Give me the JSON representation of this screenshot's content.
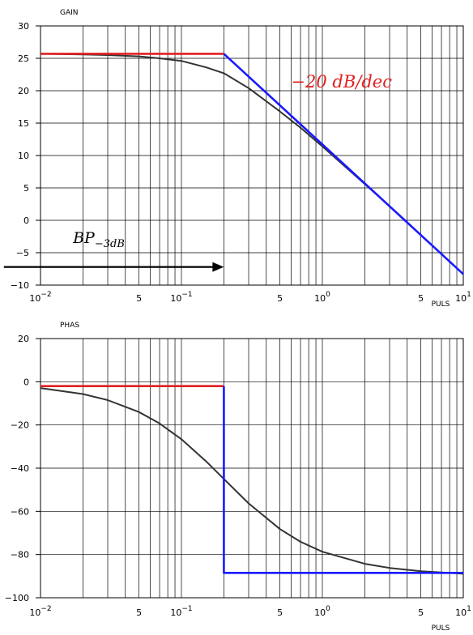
{
  "chart_data": [
    {
      "type": "line",
      "ylabel": "GAIN",
      "xlabel": "PULS",
      "x_scale": "log",
      "xlim": [
        0.01,
        10
      ],
      "ylim": [
        -10,
        30
      ],
      "y_ticks": [
        30,
        25,
        20,
        15,
        10,
        5,
        0,
        -5,
        -10
      ],
      "x_decade_labels": [
        {
          "base": "10",
          "exp": "−2",
          "x": 0.01
        },
        {
          "base": "10",
          "exp": "−1",
          "x": 0.1
        },
        {
          "base": "10",
          "exp": "0",
          "x": 1
        },
        {
          "base": "10",
          "exp": "1",
          "x": 10
        }
      ],
      "x_minor_labels": [
        {
          "text": "5",
          "x": 0.05
        },
        {
          "text": "5",
          "x": 0.5
        },
        {
          "text": "5",
          "x": 5
        }
      ],
      "series": [
        {
          "color": "#333333",
          "kind": "exact",
          "x": [
            0.01,
            0.02,
            0.03,
            0.05,
            0.07,
            0.1,
            0.15,
            0.2,
            0.3,
            0.5,
            0.7,
            1,
            2,
            3,
            5,
            10
          ],
          "y": [
            25.7,
            25.6,
            25.5,
            25.3,
            25.0,
            24.6,
            23.6,
            22.7,
            20.4,
            16.8,
            14.3,
            11.4,
            5.6,
            2.2,
            -2.3,
            -8.3
          ]
        },
        {
          "color": "#e02020",
          "kind": "asymptote",
          "x": [
            0.01,
            0.2
          ],
          "y": [
            25.7,
            25.7
          ]
        },
        {
          "color": "#1a1aff",
          "kind": "asymptote",
          "x": [
            0.2,
            10
          ],
          "y": [
            25.7,
            -8.3
          ]
        }
      ],
      "annotations": [
        {
          "kind": "slope",
          "text": "−20 dB/dec",
          "color": "#e02020",
          "x": 0.6,
          "y": 20.5
        },
        {
          "kind": "bandwidth",
          "main": "BP",
          "sub": "−3dB",
          "x": 0.017,
          "y": -3.5,
          "arrow": {
            "from": 0.0055,
            "to": 0.2,
            "y": -7.2
          }
        }
      ]
    },
    {
      "type": "line",
      "ylabel": "PHAS",
      "xlabel": "PULS",
      "x_scale": "log",
      "xlim": [
        0.01,
        10
      ],
      "ylim": [
        -100,
        20
      ],
      "y_ticks": [
        20,
        0,
        -20,
        -40,
        -60,
        -80,
        -100
      ],
      "x_decade_labels": [
        {
          "base": "10",
          "exp": "−2",
          "x": 0.01
        },
        {
          "base": "10",
          "exp": "−1",
          "x": 0.1
        },
        {
          "base": "10",
          "exp": "0",
          "x": 1
        },
        {
          "base": "10",
          "exp": "1",
          "x": 10
        }
      ],
      "x_minor_labels": [
        {
          "text": "5",
          "x": 0.05
        },
        {
          "text": "5",
          "x": 0.5
        },
        {
          "text": "5",
          "x": 5
        }
      ],
      "series": [
        {
          "color": "#333333",
          "kind": "exact",
          "x": [
            0.01,
            0.02,
            0.03,
            0.05,
            0.07,
            0.1,
            0.15,
            0.2,
            0.3,
            0.5,
            0.7,
            1,
            2,
            3,
            5,
            10
          ],
          "y": [
            -2.9,
            -5.7,
            -8.5,
            -14,
            -19.3,
            -26.6,
            -36.9,
            -45,
            -56.3,
            -68.2,
            -74.1,
            -78.7,
            -84.3,
            -86.2,
            -87.7,
            -88.9
          ]
        },
        {
          "color": "#e02020",
          "kind": "asymptote",
          "x": [
            0.01,
            0.2
          ],
          "y": [
            -2,
            -2
          ]
        },
        {
          "color": "#1a1aff",
          "kind": "asymptote",
          "x": [
            0.2,
            0.2,
            10
          ],
          "y": [
            -2,
            -88.5,
            -88.5
          ]
        }
      ]
    }
  ]
}
